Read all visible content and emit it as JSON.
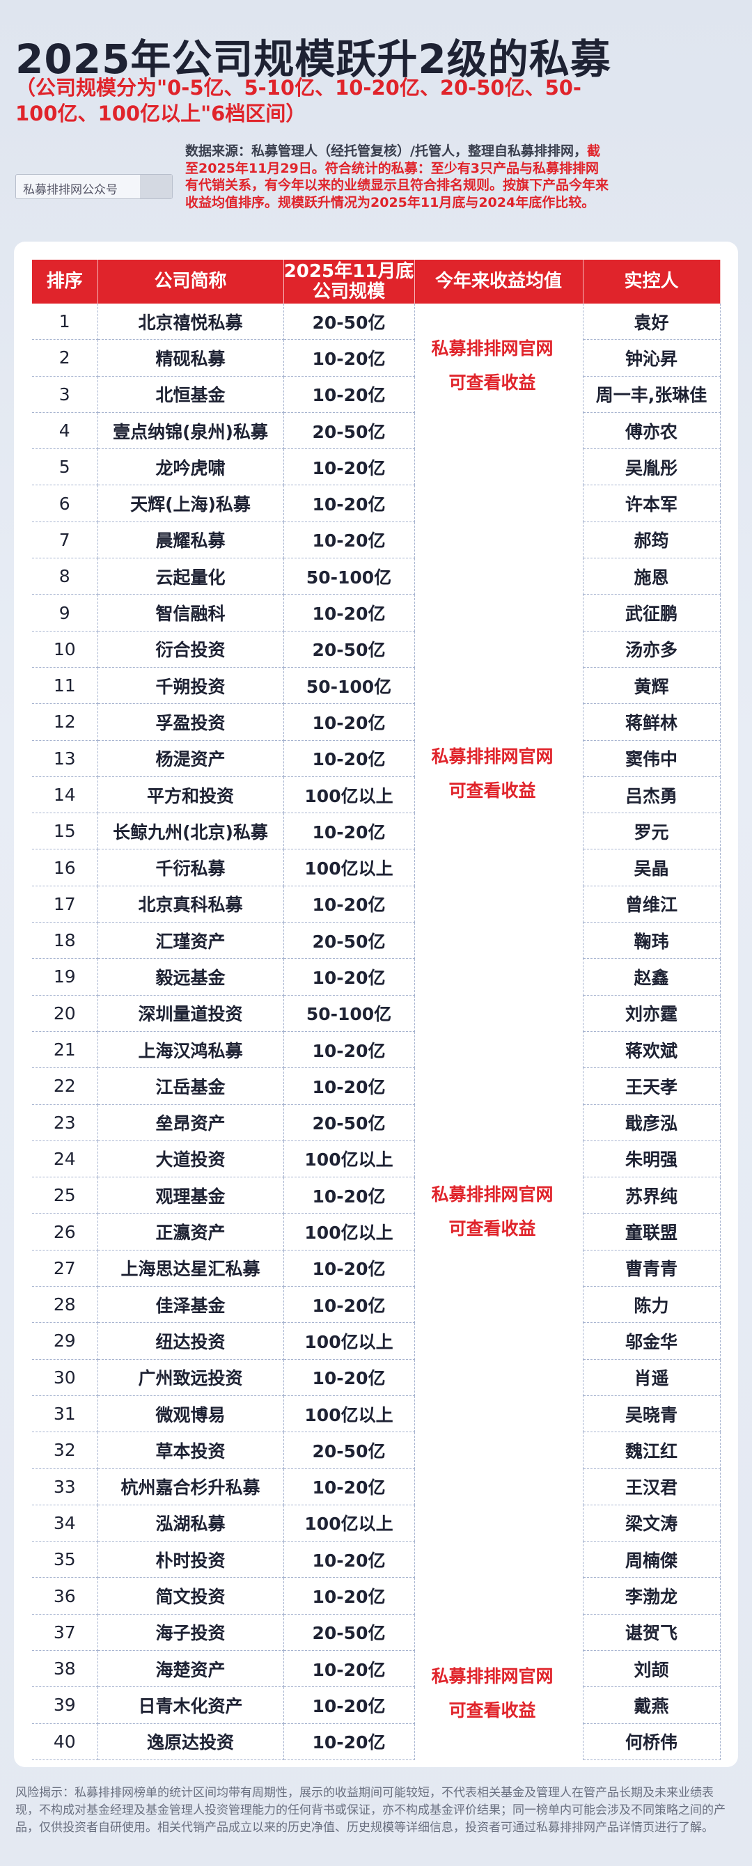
{
  "header": {
    "title": "2025年公司规模跃升2级的私募",
    "subtitle": "（公司规模分为\"0-5亿、5-10亿、10-20亿、20-50亿、50-100亿、100亿以上\"6档区间）",
    "search_placeholder": "私募排排网公众号",
    "source_text": "数据来源：私募管理人（经托管复核）/托管人，整理自私募排排网，",
    "source_note": "截至2025年11月29日。符合统计的私募：至少有3只产品与私募排排网有代销关系，有今年以来的业绩显示且符合排名规则。按旗下产品今年来收益均值排序。规模跃升情况为2025年11月底与2024年底作比较。"
  },
  "table": {
    "columns": [
      "排序",
      "公司简称",
      "2025年11月底公司规模",
      "今年来收益均值",
      "实控人"
    ],
    "rows": [
      [
        1,
        "北京禧悦私募",
        "20-50亿",
        "袁好"
      ],
      [
        2,
        "精砚私募",
        "10-20亿",
        "钟沁昇"
      ],
      [
        3,
        "北恒基金",
        "10-20亿",
        "周一丰,张琳佳"
      ],
      [
        4,
        "壹点纳锦(泉州)私募",
        "20-50亿",
        "傅亦农"
      ],
      [
        5,
        "龙吟虎啸",
        "10-20亿",
        "吴胤彤"
      ],
      [
        6,
        "天辉(上海)私募",
        "10-20亿",
        "许本军"
      ],
      [
        7,
        "晨耀私募",
        "10-20亿",
        "郝筠"
      ],
      [
        8,
        "云起量化",
        "50-100亿",
        "施恩"
      ],
      [
        9,
        "智信融科",
        "10-20亿",
        "武征鹏"
      ],
      [
        10,
        "衍合投资",
        "20-50亿",
        "汤亦多"
      ],
      [
        11,
        "千朔投资",
        "50-100亿",
        "黄辉"
      ],
      [
        12,
        "孚盈投资",
        "10-20亿",
        "蒋鲜林"
      ],
      [
        13,
        "杨湜资产",
        "10-20亿",
        "窦伟中"
      ],
      [
        14,
        "平方和投资",
        "100亿以上",
        "吕杰勇"
      ],
      [
        15,
        "长鲸九州(北京)私募",
        "10-20亿",
        "罗元"
      ],
      [
        16,
        "千衍私募",
        "100亿以上",
        "吴晶"
      ],
      [
        17,
        "北京真科私募",
        "10-20亿",
        "曾维江"
      ],
      [
        18,
        "汇瑾资产",
        "20-50亿",
        "鞠玮"
      ],
      [
        19,
        "毅远基金",
        "10-20亿",
        "赵鑫"
      ],
      [
        20,
        "深圳量道投资",
        "50-100亿",
        "刘亦霆"
      ],
      [
        21,
        "上海汉鸿私募",
        "10-20亿",
        "蒋欢斌"
      ],
      [
        22,
        "江岳基金",
        "10-20亿",
        "王天孝"
      ],
      [
        23,
        "垒昂资产",
        "20-50亿",
        "戢彦泓"
      ],
      [
        24,
        "大道投资",
        "100亿以上",
        "朱明强"
      ],
      [
        25,
        "观理基金",
        "10-20亿",
        "苏界纯"
      ],
      [
        26,
        "正瀛资产",
        "100亿以上",
        "童联盟"
      ],
      [
        27,
        "上海思达星汇私募",
        "10-20亿",
        "曹青青"
      ],
      [
        28,
        "佳泽基金",
        "10-20亿",
        "陈力"
      ],
      [
        29,
        "纽达投资",
        "100亿以上",
        "邬金华"
      ],
      [
        30,
        "广州致远投资",
        "10-20亿",
        "肖遥"
      ],
      [
        31,
        "微观博易",
        "100亿以上",
        "吴晓青"
      ],
      [
        32,
        "草本投资",
        "20-50亿",
        "魏江红"
      ],
      [
        33,
        "杭州嘉合杉升私募",
        "10-20亿",
        "王汉君"
      ],
      [
        34,
        "泓湖私募",
        "100亿以上",
        "梁文涛"
      ],
      [
        35,
        "朴时投资",
        "10-20亿",
        "周楠傑"
      ],
      [
        36,
        "简文投资",
        "10-20亿",
        "李渤龙"
      ],
      [
        37,
        "海子投资",
        "20-50亿",
        "谌贺飞"
      ],
      [
        38,
        "海楚资产",
        "10-20亿",
        "刘颉"
      ],
      [
        39,
        "日青木化资产",
        "10-20亿",
        "戴燕"
      ],
      [
        40,
        "逸原达投资",
        "10-20亿",
        "何桥伟"
      ]
    ],
    "notes": [
      [
        "私募排排网官网",
        "可查看收益"
      ],
      [
        "私募排排网官网",
        "可查看收益"
      ],
      [
        "私募排排网官网",
        "可查看收益"
      ],
      [
        "私募排排网官网",
        "可查看收益"
      ]
    ]
  },
  "footer": {
    "risk": "风险揭示：私募排排网榜单的统计区间均带有周期性，展示的收益期间可能较短，不代表相关基金及管理人在管产品长期及未来业绩表现，不构成对基金经理及基金管理人投资管理能力的任何背书或保证，亦不构成基金评价结果；同一榜单内可能会涉及不同策略之间的产品，仅供投资者自研使用。相关代销产品成立以来的历史净值、历史规模等详细信息，投资者可通过私募排排网产品详情页进行了解。"
  }
}
